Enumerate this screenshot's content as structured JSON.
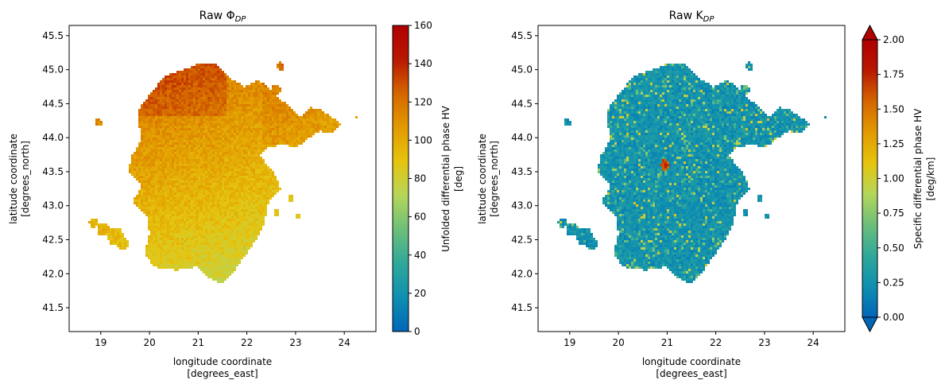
{
  "chart_data": [
    {
      "type": "heatmap",
      "title": "Raw Φ",
      "title_subscript": "DP",
      "xlabel": "longitude coordinate",
      "xunits": "[degrees_east]",
      "ylabel": "latitude coordinate",
      "yunits": "[degrees_north]",
      "xlim": [
        18.35,
        24.65
      ],
      "ylim": [
        41.15,
        45.65
      ],
      "xticks": [
        "19",
        "20",
        "21",
        "22",
        "23",
        "24"
      ],
      "yticks": [
        "41.5",
        "42.0",
        "42.5",
        "43.0",
        "43.5",
        "44.0",
        "44.5",
        "45.0",
        "45.5"
      ],
      "colorbar": {
        "label": "Unfolded differential phase HV",
        "units": "[deg]",
        "range": [
          0,
          160
        ],
        "ticks": [
          "0",
          "20",
          "40",
          "60",
          "80",
          "100",
          "120",
          "140",
          "160"
        ],
        "extend": "neither"
      },
      "typical_value": 100
    },
    {
      "type": "heatmap",
      "title": "Raw K",
      "title_subscript": "DP",
      "xlabel": "longitude coordinate",
      "xunits": "[degrees_east]",
      "ylabel": "latitude coordinate",
      "yunits": "[degrees_north]",
      "xlim": [
        18.35,
        24.65
      ],
      "ylim": [
        41.15,
        45.65
      ],
      "xticks": [
        "19",
        "20",
        "21",
        "22",
        "23",
        "24"
      ],
      "yticks": [
        "41.5",
        "42.0",
        "42.5",
        "43.0",
        "43.5",
        "44.0",
        "44.5",
        "45.0",
        "45.5"
      ],
      "colorbar": {
        "label": "Specific differential phase HV",
        "units": "[deg/km]",
        "range": [
          0,
          2
        ],
        "ticks": [
          "0.00",
          "0.25",
          "0.50",
          "0.75",
          "1.00",
          "1.25",
          "1.50",
          "1.75",
          "2.00"
        ],
        "extend": "both"
      },
      "typical_value": 0.15
    }
  ],
  "colormap": [
    "#0066b8",
    "#0f8fb0",
    "#2fa89a",
    "#6cbf7a",
    "#b5d65a",
    "#e6c40e",
    "#e29a00",
    "#d46600",
    "#b81800",
    "#b00000"
  ]
}
